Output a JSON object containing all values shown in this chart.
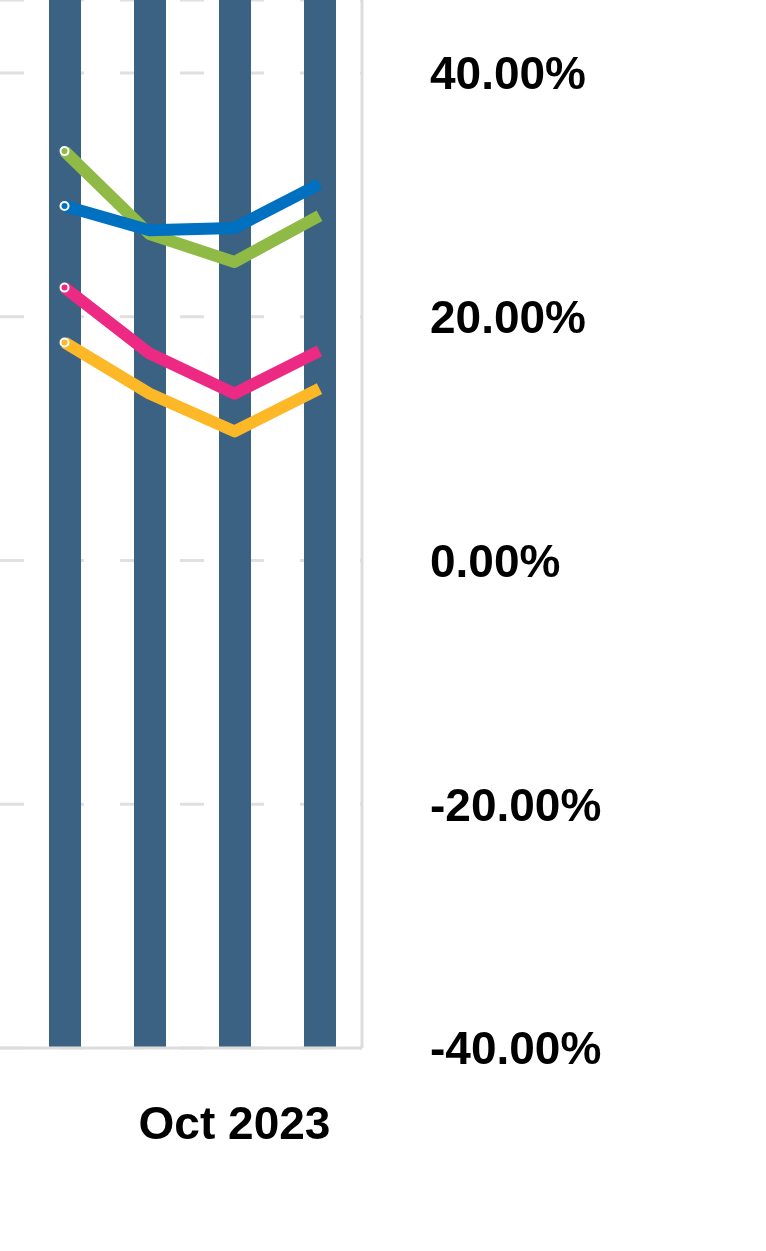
{
  "chart_data": {
    "type": "bar",
    "categories": [
      null,
      null,
      "Oct 2023",
      null
    ],
    "series": [
      {
        "color": "#3b6282",
        "values": [
          86,
          86,
          86,
          86
        ],
        "base": [
          -40,
          -40,
          -40,
          -40
        ]
      },
      {
        "type": "line",
        "color": "#8fba45",
        "values": [
          33.6,
          26.8,
          24.5,
          28.3
        ]
      },
      {
        "type": "line",
        "color": "#0070c0",
        "values": [
          29.1,
          27.1,
          27.3,
          30.9
        ]
      },
      {
        "type": "line",
        "color": "#ec2a84",
        "values": [
          22.4,
          17.0,
          13.7,
          17.2
        ]
      },
      {
        "type": "line",
        "color": "#fdb827",
        "values": [
          17.9,
          13.7,
          10.6,
          14.1
        ]
      }
    ],
    "ylim": [
      -40,
      46
    ],
    "yticks": [
      {
        "value": -40,
        "label": "-40.00%"
      },
      {
        "value": -20,
        "label": "-20.00%"
      },
      {
        "value": 0,
        "label": "0.00%"
      },
      {
        "value": 20,
        "label": "20.00%"
      },
      {
        "value": 40,
        "label": "40.00%"
      }
    ],
    "grid": "y",
    "marker": "none",
    "line_style": "solid"
  }
}
